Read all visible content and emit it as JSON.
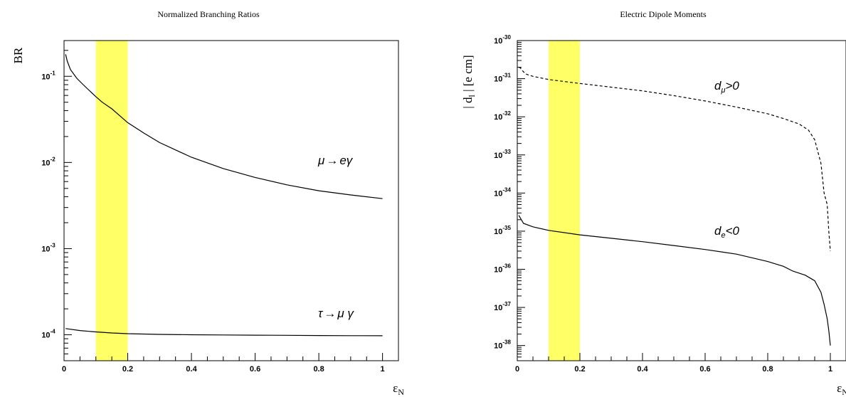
{
  "chart_data": [
    {
      "type": "line",
      "title": "Normalized Branching Ratios",
      "ylabel": "BR",
      "xlabel": "ε",
      "xlabel_sub": "N",
      "xlim": [
        0,
        1.05
      ],
      "ylim": [
        5e-05,
        0.26
      ],
      "yscale": "log",
      "grid": false,
      "xticks": [
        0,
        0.2,
        0.4,
        0.6,
        0.8,
        1
      ],
      "xtick_labels": [
        "0",
        "0.2",
        "0.4",
        "0.6",
        "0.8",
        "1"
      ],
      "yticks": [
        {
          "value": 0.1,
          "base": "10",
          "exp": "-1"
        },
        {
          "value": 0.01,
          "base": "10",
          "exp": "-2"
        },
        {
          "value": 0.001,
          "base": "10",
          "exp": "-3"
        },
        {
          "value": 0.0001,
          "base": "10",
          "exp": "-4"
        }
      ],
      "band": {
        "x": [
          0.1,
          0.2
        ],
        "color": "#ffff66"
      },
      "series": [
        {
          "label_a": "μ",
          "label_arrow": "→",
          "label_b": "eγ",
          "style": "solid",
          "x": [
            0.005,
            0.01,
            0.02,
            0.04,
            0.06,
            0.08,
            0.1,
            0.12,
            0.15,
            0.2,
            0.25,
            0.3,
            0.4,
            0.5,
            0.6,
            0.7,
            0.8,
            0.9,
            1.0
          ],
          "y": [
            0.18,
            0.15,
            0.12,
            0.095,
            0.08,
            0.068,
            0.058,
            0.05,
            0.042,
            0.029,
            0.022,
            0.017,
            0.0115,
            0.0085,
            0.0067,
            0.0055,
            0.0047,
            0.0042,
            0.0038
          ]
        },
        {
          "label_a": "τ",
          "label_arrow": "→",
          "label_b": "μ γ",
          "style": "solid",
          "x": [
            0.005,
            0.05,
            0.1,
            0.15,
            0.2,
            0.3,
            0.4,
            0.5,
            0.6,
            0.7,
            0.8,
            0.9,
            1.0
          ],
          "y": [
            0.000118,
            0.000112,
            0.000108,
            0.000105,
            0.000103,
            0.000101,
            0.0001,
            9.95e-05,
            9.9e-05,
            9.85e-05,
            9.8e-05,
            9.77e-05,
            9.75e-05
          ]
        }
      ]
    },
    {
      "type": "line",
      "title": "Electric Dipole Moments",
      "ylabel": "| d",
      "ylabel_sub": "l",
      "ylabel_tail": " | [e cm]",
      "xlabel": "ε",
      "xlabel_sub": "N",
      "xlim": [
        0,
        1.05
      ],
      "ylim": [
        4e-39,
        1e-30
      ],
      "yscale": "log",
      "grid": false,
      "xticks": [
        0,
        0.2,
        0.4,
        0.6,
        0.8,
        1
      ],
      "xtick_labels": [
        "0",
        "0.2",
        "0.4",
        "0.6",
        "0.8",
        "1"
      ],
      "yticks": [
        {
          "value": 1e-30,
          "base": "10",
          "exp": "-30"
        },
        {
          "value": 1e-31,
          "base": "10",
          "exp": "-31"
        },
        {
          "value": 1e-32,
          "base": "10",
          "exp": "-32"
        },
        {
          "value": 1e-33,
          "base": "10",
          "exp": "-33"
        },
        {
          "value": 1e-34,
          "base": "10",
          "exp": "-34"
        },
        {
          "value": 1e-35,
          "base": "10",
          "exp": "-35"
        },
        {
          "value": 1e-36,
          "base": "10",
          "exp": "-36"
        },
        {
          "value": 1e-37,
          "base": "10",
          "exp": "-37"
        },
        {
          "value": 1e-38,
          "base": "10",
          "exp": "-38"
        }
      ],
      "band": {
        "x": [
          0.1,
          0.2
        ],
        "color": "#ffff66"
      },
      "series": [
        {
          "label_a": "d",
          "label_sub": "μ",
          "label_b": ">0",
          "style": "dashed",
          "x": [
            0.005,
            0.01,
            0.02,
            0.03,
            0.05,
            0.1,
            0.2,
            0.3,
            0.4,
            0.5,
            0.6,
            0.7,
            0.8,
            0.85,
            0.9,
            0.93,
            0.95,
            0.97,
            0.98,
            0.99,
            0.995,
            1.0
          ],
          "y": [
            2e-31,
            1.9e-31,
            1.5e-31,
            1.3e-31,
            1.15e-31,
            9.5e-32,
            7.5e-32,
            6e-32,
            4.8e-32,
            3.6e-32,
            2.6e-32,
            1.8e-32,
            1.2e-32,
            9e-33,
            6.5e-33,
            4.5e-33,
            2.5e-33,
            6e-34,
            1e-34,
            5e-35,
            1e-35,
            3e-36
          ]
        },
        {
          "label_a": "d",
          "label_sub": "e",
          "label_b": "<0",
          "style": "solid",
          "x": [
            0.005,
            0.01,
            0.02,
            0.05,
            0.1,
            0.2,
            0.3,
            0.4,
            0.5,
            0.6,
            0.7,
            0.8,
            0.85,
            0.88,
            0.92,
            0.95,
            0.97,
            0.98,
            0.99,
            0.995,
            1.0
          ],
          "y": [
            2.6e-35,
            2.2e-35,
            1.6e-35,
            1.3e-35,
            1.05e-35,
            8e-36,
            6.5e-36,
            5.3e-36,
            4.2e-36,
            3.3e-36,
            2.5e-36,
            1.6e-36,
            1.2e-36,
            9e-37,
            7e-37,
            5e-37,
            2.5e-37,
            1.2e-37,
            5e-38,
            2.5e-38,
            1e-38
          ]
        }
      ]
    }
  ]
}
